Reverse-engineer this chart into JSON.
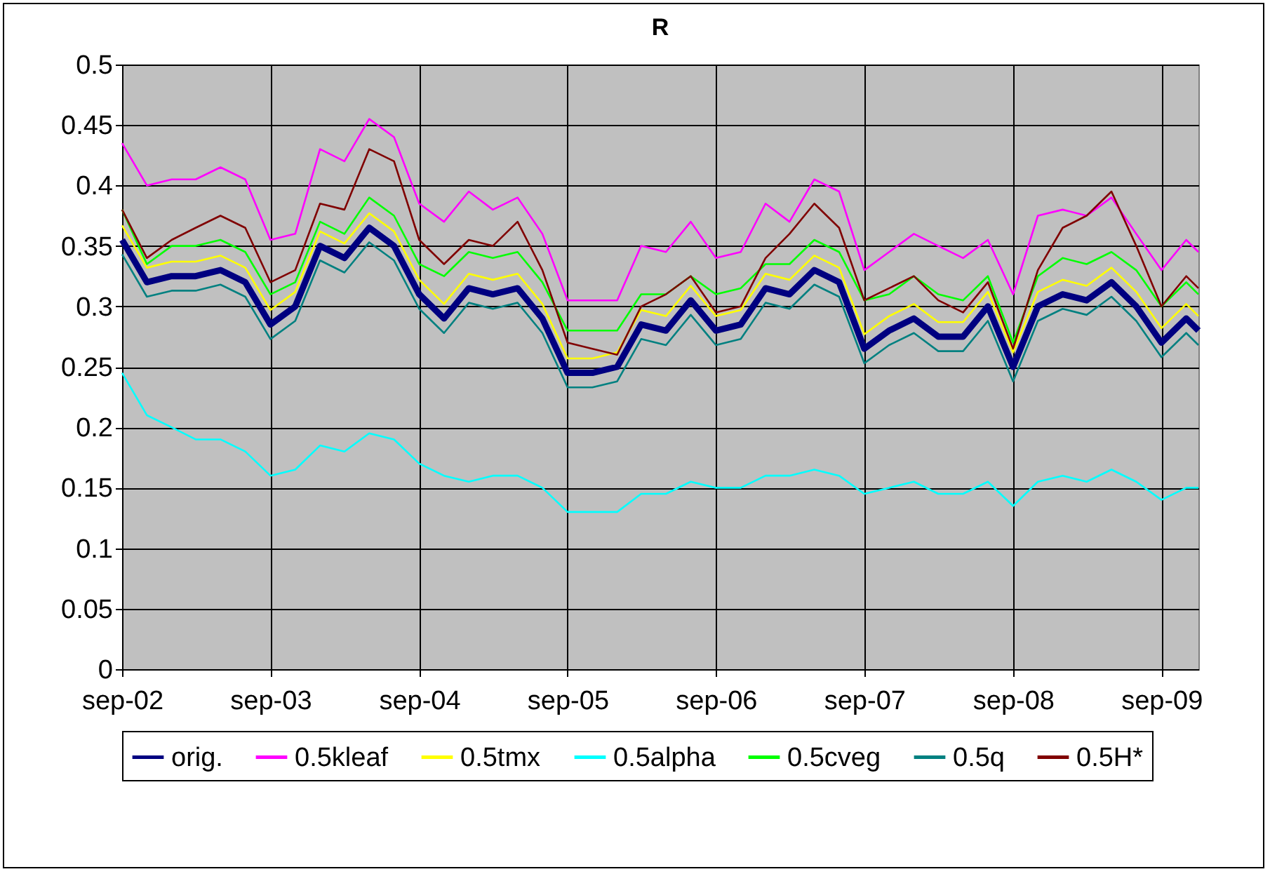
{
  "chart_data": {
    "type": "line",
    "title": "R",
    "x": [
      "2002-09",
      "2002-11",
      "2003-01",
      "2003-03",
      "2003-05",
      "2003-07",
      "2003-09",
      "2003-11",
      "2004-01",
      "2004-03",
      "2004-05",
      "2004-07",
      "2004-09",
      "2004-11",
      "2005-01",
      "2005-03",
      "2005-05",
      "2005-07",
      "2005-09",
      "2005-11",
      "2006-01",
      "2006-03",
      "2006-05",
      "2006-07",
      "2006-09",
      "2006-11",
      "2007-01",
      "2007-03",
      "2007-05",
      "2007-07",
      "2007-09",
      "2007-11",
      "2008-01",
      "2008-03",
      "2008-05",
      "2008-07",
      "2008-09",
      "2008-11",
      "2009-01",
      "2009-03",
      "2009-05",
      "2009-07",
      "2009-09",
      "2009-11",
      "2009-12"
    ],
    "xlim": [
      "2002-09",
      "2009-12"
    ],
    "xticks": [
      {
        "value": "2002-09",
        "label": "sep-02"
      },
      {
        "value": "2003-09",
        "label": "sep-03"
      },
      {
        "value": "2004-09",
        "label": "sep-04"
      },
      {
        "value": "2005-09",
        "label": "sep-05"
      },
      {
        "value": "2006-09",
        "label": "sep-06"
      },
      {
        "value": "2007-09",
        "label": "sep-07"
      },
      {
        "value": "2008-09",
        "label": "sep-08"
      },
      {
        "value": "2009-09",
        "label": "sep-09"
      }
    ],
    "ylim": [
      0,
      0.5
    ],
    "yticks": [
      0,
      0.05,
      0.1,
      0.15,
      0.2,
      0.25,
      0.3,
      0.35,
      0.4,
      0.45,
      0.5
    ],
    "grid": true,
    "legend": "bottom",
    "series": [
      {
        "name": "orig.",
        "color": "#000080",
        "values": [
          0.355,
          0.32,
          0.325,
          0.325,
          0.33,
          0.32,
          0.285,
          0.3,
          0.35,
          0.34,
          0.365,
          0.35,
          0.31,
          0.29,
          0.315,
          0.31,
          0.315,
          0.29,
          0.245,
          0.245,
          0.25,
          0.285,
          0.28,
          0.305,
          0.28,
          0.285,
          0.315,
          0.31,
          0.33,
          0.32,
          0.265,
          0.28,
          0.29,
          0.275,
          0.275,
          0.3,
          0.25,
          0.3,
          0.31,
          0.305,
          0.32,
          0.3,
          0.27,
          0.29,
          0.28
        ]
      },
      {
        "name": "0.5kleaf",
        "color": "#ff00ff",
        "values": [
          0.435,
          0.4,
          0.405,
          0.405,
          0.415,
          0.405,
          0.355,
          0.36,
          0.43,
          0.42,
          0.455,
          0.44,
          0.385,
          0.37,
          0.395,
          0.38,
          0.39,
          0.36,
          0.305,
          0.305,
          0.305,
          0.35,
          0.345,
          0.37,
          0.34,
          0.345,
          0.385,
          0.37,
          0.405,
          0.395,
          0.33,
          0.345,
          0.36,
          0.35,
          0.34,
          0.355,
          0.31,
          0.375,
          0.38,
          0.375,
          0.39,
          0.36,
          0.33,
          0.355,
          0.345
        ]
      },
      {
        "name": "0.5tmx",
        "color": "#ffff00",
        "values": [
          0.367,
          0.332,
          0.337,
          0.337,
          0.342,
          0.332,
          0.297,
          0.312,
          0.362,
          0.352,
          0.377,
          0.362,
          0.322,
          0.302,
          0.327,
          0.322,
          0.327,
          0.302,
          0.257,
          0.257,
          0.262,
          0.297,
          0.292,
          0.317,
          0.292,
          0.297,
          0.327,
          0.322,
          0.342,
          0.332,
          0.277,
          0.292,
          0.302,
          0.287,
          0.287,
          0.312,
          0.262,
          0.312,
          0.322,
          0.317,
          0.332,
          0.312,
          0.282,
          0.302,
          0.292
        ]
      },
      {
        "name": "0.5alpha",
        "color": "#00ffff",
        "values": [
          0.245,
          0.21,
          0.2,
          0.19,
          0.19,
          0.18,
          0.16,
          0.165,
          0.185,
          0.18,
          0.195,
          0.19,
          0.17,
          0.16,
          0.155,
          0.16,
          0.16,
          0.15,
          0.13,
          0.13,
          0.13,
          0.145,
          0.145,
          0.155,
          0.15,
          0.15,
          0.16,
          0.16,
          0.165,
          0.16,
          0.145,
          0.15,
          0.155,
          0.145,
          0.145,
          0.155,
          0.135,
          0.155,
          0.16,
          0.155,
          0.165,
          0.155,
          0.14,
          0.15,
          0.15
        ]
      },
      {
        "name": "0.5cveg",
        "color": "#00ff00",
        "values": [
          0.38,
          0.335,
          0.35,
          0.35,
          0.355,
          0.345,
          0.31,
          0.32,
          0.37,
          0.36,
          0.39,
          0.375,
          0.335,
          0.325,
          0.345,
          0.34,
          0.345,
          0.32,
          0.28,
          0.28,
          0.28,
          0.31,
          0.31,
          0.325,
          0.31,
          0.315,
          0.335,
          0.335,
          0.355,
          0.345,
          0.305,
          0.31,
          0.325,
          0.31,
          0.305,
          0.325,
          0.27,
          0.325,
          0.34,
          0.335,
          0.345,
          0.33,
          0.3,
          0.32,
          0.31
        ]
      },
      {
        "name": "0.5q",
        "color": "#008080",
        "values": [
          0.343,
          0.308,
          0.313,
          0.313,
          0.318,
          0.308,
          0.273,
          0.288,
          0.338,
          0.328,
          0.353,
          0.338,
          0.298,
          0.278,
          0.303,
          0.298,
          0.303,
          0.278,
          0.233,
          0.233,
          0.238,
          0.273,
          0.268,
          0.293,
          0.268,
          0.273,
          0.303,
          0.298,
          0.318,
          0.308,
          0.253,
          0.268,
          0.278,
          0.263,
          0.263,
          0.288,
          0.238,
          0.288,
          0.298,
          0.293,
          0.308,
          0.288,
          0.258,
          0.278,
          0.268
        ]
      },
      {
        "name": "0.5H*",
        "color": "#800000",
        "values": [
          0.38,
          0.34,
          0.355,
          0.365,
          0.375,
          0.365,
          0.32,
          0.33,
          0.385,
          0.38,
          0.43,
          0.42,
          0.355,
          0.335,
          0.355,
          0.35,
          0.37,
          0.33,
          0.27,
          0.265,
          0.26,
          0.3,
          0.31,
          0.325,
          0.295,
          0.3,
          0.34,
          0.36,
          0.385,
          0.365,
          0.305,
          0.315,
          0.325,
          0.305,
          0.295,
          0.32,
          0.265,
          0.33,
          0.365,
          0.375,
          0.395,
          0.35,
          0.3,
          0.325,
          0.315
        ]
      }
    ]
  }
}
